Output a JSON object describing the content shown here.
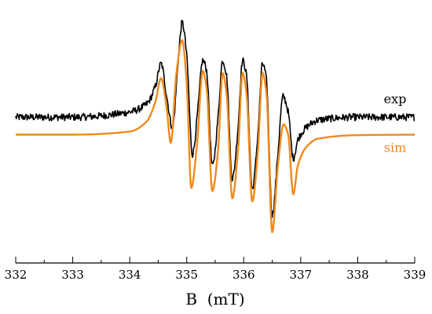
{
  "chart_data": {
    "type": "line",
    "title": "",
    "xlabel": "B  (mT)",
    "ylabel": "",
    "xlim": [
      332,
      339
    ],
    "ylim": [
      -1.25,
      1.25
    ],
    "x_ticks": [
      "332",
      "333",
      "334",
      "335",
      "336",
      "337",
      "338",
      "339"
    ],
    "y_axis_visible": false,
    "grid": false,
    "legend": "labels at right end of each trace",
    "series": [
      {
        "name": "exp",
        "color": "#000000",
        "offset": 0.17,
        "noise": 0.035,
        "x": [
          332.0,
          333.0,
          334.0,
          334.3,
          334.45,
          334.55,
          334.65,
          334.75,
          334.85,
          334.92,
          335.0,
          335.1,
          335.2,
          335.28,
          335.35,
          335.45,
          335.55,
          335.63,
          335.7,
          335.8,
          335.9,
          335.98,
          336.05,
          336.15,
          336.25,
          336.33,
          336.4,
          336.5,
          336.6,
          336.69,
          336.78,
          336.87,
          336.95,
          337.1,
          337.3,
          338.0,
          339.0
        ],
        "y": [
          0.0,
          0.0,
          0.05,
          0.13,
          0.3,
          0.52,
          0.2,
          -0.1,
          0.55,
          0.92,
          0.6,
          -0.36,
          0.1,
          0.55,
          0.45,
          -0.48,
          0.0,
          0.55,
          0.4,
          -0.6,
          -0.1,
          0.55,
          0.4,
          -0.7,
          -0.15,
          0.52,
          0.35,
          -0.95,
          -0.35,
          0.2,
          0.05,
          -0.4,
          -0.22,
          -0.1,
          -0.03,
          0.0,
          0.0
        ]
      },
      {
        "name": "sim",
        "color": "#f08a1c",
        "offset": 0.0,
        "noise": 0.0,
        "x": [
          332.0,
          333.0,
          334.0,
          334.3,
          334.45,
          334.55,
          334.65,
          334.72,
          334.82,
          334.92,
          335.0,
          335.08,
          335.18,
          335.28,
          335.35,
          335.45,
          335.55,
          335.63,
          335.7,
          335.8,
          335.9,
          335.98,
          336.05,
          336.15,
          336.25,
          336.33,
          336.4,
          336.5,
          336.6,
          336.7,
          336.78,
          336.87,
          336.95,
          337.1,
          337.3,
          338.0,
          339.0
        ],
        "y": [
          0.0,
          0.0,
          0.03,
          0.13,
          0.32,
          0.55,
          0.25,
          -0.08,
          0.6,
          0.92,
          0.5,
          -0.52,
          -0.1,
          0.62,
          0.45,
          -0.55,
          -0.15,
          0.6,
          0.4,
          -0.62,
          -0.15,
          0.6,
          0.4,
          -0.65,
          -0.15,
          0.6,
          0.4,
          -0.95,
          -0.3,
          0.1,
          0.0,
          -0.58,
          -0.3,
          -0.12,
          -0.04,
          -0.005,
          0.0
        ]
      }
    ]
  }
}
